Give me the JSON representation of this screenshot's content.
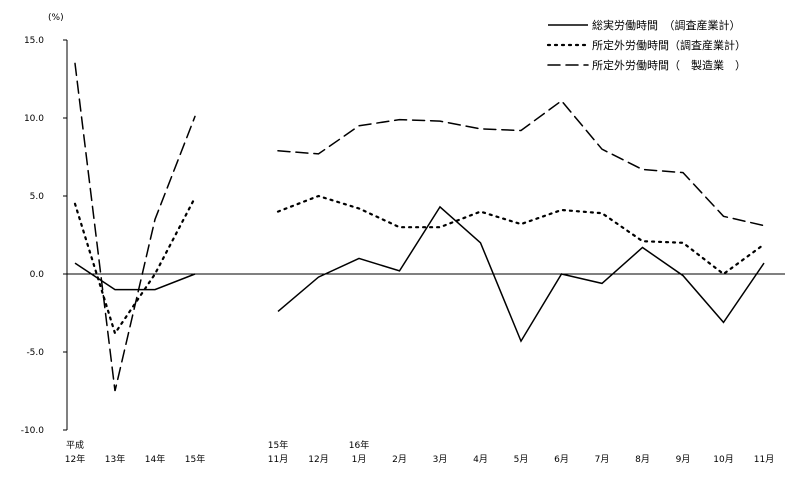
{
  "chart_data": {
    "type": "line",
    "ylabel": "(%)",
    "ylim": [
      -10.0,
      15.0
    ],
    "yticks": [
      "15.0",
      "10.0",
      "5.0",
      "0.0",
      "-5.0",
      "-10.0"
    ],
    "ytick_values": [
      15,
      10,
      5,
      0,
      -5,
      -10
    ],
    "x_groups": [
      {
        "labels": [
          [
            "平成",
            "12年"
          ],
          [
            "",
            "13年"
          ],
          [
            "",
            "14年"
          ],
          [
            "",
            "15年"
          ]
        ]
      },
      {
        "labels": [
          [
            "15年",
            "11月"
          ],
          [
            "",
            "12月"
          ],
          [
            "16年",
            "1月"
          ],
          [
            "",
            "2月"
          ],
          [
            "",
            "3月"
          ],
          [
            "",
            "4月"
          ],
          [
            "",
            "5月"
          ],
          [
            "",
            "6月"
          ],
          [
            "",
            "7月"
          ],
          [
            "",
            "8月"
          ],
          [
            "",
            "9月"
          ],
          [
            "",
            "10月"
          ],
          [
            "",
            "11月"
          ]
        ]
      }
    ],
    "series": [
      {
        "name": "総実労働時間　（調査産業計）",
        "style": "solid",
        "annual": [
          0.7,
          -1.0,
          -1.0,
          0.0
        ],
        "monthly": [
          -2.4,
          -0.2,
          1.0,
          0.2,
          4.3,
          2.0,
          -4.3,
          0.0,
          -0.6,
          1.7,
          -0.1,
          -3.1,
          0.7
        ]
      },
      {
        "name": "所定外労働時間（調査産業計）",
        "style": "dotted",
        "annual": [
          4.5,
          -3.8,
          0.0,
          4.9
        ],
        "monthly": [
          4.0,
          5.0,
          4.2,
          3.0,
          3.0,
          4.0,
          3.2,
          4.1,
          3.9,
          2.1,
          2.0,
          0.0,
          1.9
        ]
      },
      {
        "name": "所定外労働時間（　製造業　）",
        "style": "dashed",
        "annual": [
          13.5,
          -7.5,
          3.5,
          10.1
        ],
        "monthly": [
          7.9,
          7.7,
          9.5,
          9.9,
          9.8,
          9.3,
          9.2,
          11.1,
          8.0,
          6.7,
          6.5,
          3.7,
          3.1
        ]
      }
    ],
    "legend_position": "top-right"
  }
}
